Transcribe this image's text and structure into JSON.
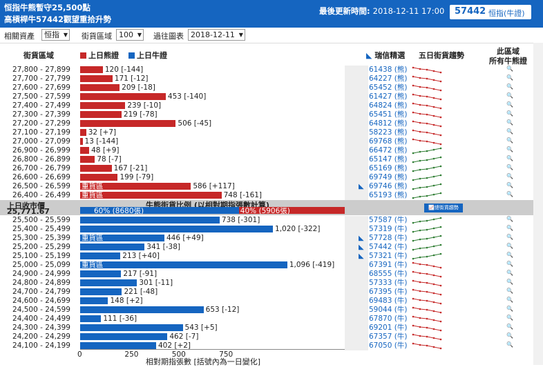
{
  "header": {
    "title_line1": "恒指牛熊暫守25,500點",
    "title_line2": "高槓桿牛57442觀望重拾升勢",
    "update_label": "最後更新時間:",
    "update_time": "2018-12-11 17:00",
    "code": "57442",
    "code_name": "恒指(牛證)"
  },
  "controls": {
    "asset_label": "相關資產",
    "asset_value": "恒指",
    "range_label": "街貨區域",
    "range_value": "100",
    "past_label": "過往圖表",
    "past_value": "2018-12-11"
  },
  "columns": {
    "range": "街貨區域",
    "bear_legend": "上日熊證",
    "bull_legend": "上日牛證",
    "ubs": "瑞信精選",
    "trend": "五日街貨趨勢",
    "all1": "此區域",
    "all2": "所有牛熊證"
  },
  "colors": {
    "bear": "#c62828",
    "bull": "#1565c0",
    "up": "#2e7d32",
    "down": "#c62828"
  },
  "bear_rows": [
    {
      "range": "27,800 - 27,899",
      "value": 120,
      "label": "120 [-144]",
      "code": "61438 (熊)",
      "trend": "down"
    },
    {
      "range": "27,700 - 27,799",
      "value": 171,
      "label": "171 [-12]",
      "code": "64227 (熊)",
      "trend": "down"
    },
    {
      "range": "27,600 - 27,699",
      "value": 209,
      "label": "209 [-18]",
      "code": "65452 (熊)",
      "trend": "down"
    },
    {
      "range": "27,500 - 27,599",
      "value": 453,
      "label": "453 [-140]",
      "code": "61427 (熊)",
      "trend": "down"
    },
    {
      "range": "27,400 - 27,499",
      "value": 239,
      "label": "239 [-10]",
      "code": "64824 (熊)",
      "trend": "down"
    },
    {
      "range": "27,300 - 27,399",
      "value": 219,
      "label": "219 [-78]",
      "code": "65451 (熊)",
      "trend": "down"
    },
    {
      "range": "27,200 - 27,299",
      "value": 506,
      "label": "506 [-45]",
      "code": "64812 (熊)",
      "trend": "down"
    },
    {
      "range": "27,100 - 27,199",
      "value": 32,
      "label": "32 [+7]",
      "code": "58223 (熊)",
      "trend": "down"
    },
    {
      "range": "27,000 - 27,099",
      "value": 13,
      "label": "13 [-144]",
      "code": "69768 (熊)",
      "trend": "down"
    },
    {
      "range": "26,900 - 26,999",
      "value": 48,
      "label": "48 [+9]",
      "code": "66472 (熊)",
      "trend": "up"
    },
    {
      "range": "26,800 - 26,899",
      "value": 78,
      "label": "78 [-7]",
      "code": "65147 (熊)",
      "trend": "up"
    },
    {
      "range": "26,700 - 26,799",
      "value": 167,
      "label": "167 [-21]",
      "code": "65169 (熊)",
      "trend": "up"
    },
    {
      "range": "26,600 - 26,699",
      "value": 199,
      "label": "199 [-79]",
      "code": "69749 (熊)",
      "trend": "up"
    },
    {
      "range": "26,500 - 26,599",
      "value": 586,
      "label": "586 [+117]",
      "code": "69746 (熊)",
      "trend": "up",
      "onbar": "重貨區",
      "arrow": true
    },
    {
      "range": "26,400 - 26,499",
      "value": 748,
      "label": "748 [-161]",
      "code": "65193 (熊)",
      "trend": "up",
      "onbar": "重貨區"
    }
  ],
  "separator": {
    "price_label": "上日收市價",
    "price_value": "25,771.67",
    "ratio_title": "牛熊街貨比例 (以相對期指張數計算)",
    "bull_pct": 60,
    "bull_text": "60% (8680張)",
    "bear_text": "40% (5906張)",
    "trend_button": "總街貨趨勢"
  },
  "bull_rows": [
    {
      "range": "25,500 - 25,599",
      "value": 738,
      "label": "738 [-301]",
      "code": "57587 (牛)",
      "trend": "up"
    },
    {
      "range": "25,400 - 25,499",
      "value": 1020,
      "label": "1,020 [-322]",
      "code": "57319 (牛)",
      "trend": "up"
    },
    {
      "range": "25,300 - 25,399",
      "value": 446,
      "label": "446 [+49]",
      "code": "57728 (牛)",
      "trend": "up",
      "onbar": "重貨區",
      "arrow": true
    },
    {
      "range": "25,200 - 25,299",
      "value": 341,
      "label": "341 [-38]",
      "code": "57442 (牛)",
      "trend": "up",
      "arrow": true
    },
    {
      "range": "25,100 - 25,199",
      "value": 213,
      "label": "213 [+40]",
      "code": "57321 (牛)",
      "trend": "up",
      "arrow": true
    },
    {
      "range": "25,000 - 25,099",
      "value": 1096,
      "label": "1,096 [-419]",
      "code": "67391 (牛)",
      "trend": "down",
      "onbar": "重貨區"
    },
    {
      "range": "24,900 - 24,999",
      "value": 217,
      "label": "217 [-91]",
      "code": "68555 (牛)",
      "trend": "down"
    },
    {
      "range": "24,800 - 24,899",
      "value": 301,
      "label": "301 [-11]",
      "code": "57333 (牛)",
      "trend": "down"
    },
    {
      "range": "24,700 - 24,799",
      "value": 221,
      "label": "221 [-48]",
      "code": "67395 (牛)",
      "trend": "down"
    },
    {
      "range": "24,600 - 24,699",
      "value": 148,
      "label": "148 [+2]",
      "code": "69483 (牛)",
      "trend": "down"
    },
    {
      "range": "24,500 - 24,599",
      "value": 653,
      "label": "653 [-12]",
      "code": "59044 (牛)",
      "trend": "down"
    },
    {
      "range": "24,400 - 24,499",
      "value": 111,
      "label": "111 [-36]",
      "code": "67870 (牛)",
      "trend": "down"
    },
    {
      "range": "24,300 - 24,399",
      "value": 543,
      "label": "543 [+5]",
      "code": "69201 (牛)",
      "trend": "down"
    },
    {
      "range": "24,200 - 24,299",
      "value": 462,
      "label": "462 [-7]",
      "code": "67357 (牛)",
      "trend": "down"
    },
    {
      "range": "24,100 - 24,199",
      "value": 402,
      "label": "402 [+2]",
      "code": "67050 (牛)",
      "trend": "down"
    }
  ],
  "axis": {
    "ticks": [
      0,
      250,
      500,
      750
    ],
    "max": 1400,
    "label": "相對期指張數 [括號內為一日變化]"
  }
}
